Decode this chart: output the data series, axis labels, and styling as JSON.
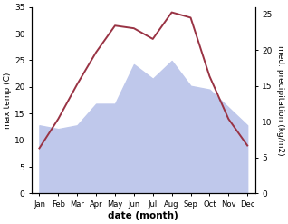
{
  "months": [
    "Jan",
    "Feb",
    "Mar",
    "Apr",
    "May",
    "Jun",
    "Jul",
    "Aug",
    "Sep",
    "Oct",
    "Nov",
    "Dec"
  ],
  "temp_max": [
    8.5,
    14.0,
    20.5,
    26.5,
    31.5,
    31.0,
    29.0,
    34.0,
    33.0,
    22.0,
    14.0,
    9.0
  ],
  "precipitation": [
    9.5,
    9.0,
    9.5,
    12.5,
    12.5,
    18.0,
    16.0,
    18.5,
    15.0,
    14.5,
    12.0,
    9.5
  ],
  "temp_color": "#993344",
  "precip_fill_color": "#bfc8eb",
  "temp_ylim": [
    0,
    35
  ],
  "precip_ylim": [
    0,
    26.0
  ],
  "temp_yticks": [
    0,
    5,
    10,
    15,
    20,
    25,
    30,
    35
  ],
  "precip_yticks": [
    0,
    5,
    10,
    15,
    20,
    25
  ],
  "xlabel": "date (month)",
  "ylabel_left": "max temp (C)",
  "ylabel_right": "med. precipitation (kg/m2)",
  "bg_color": "#ffffff",
  "figsize": [
    3.18,
    2.47
  ],
  "dpi": 100
}
